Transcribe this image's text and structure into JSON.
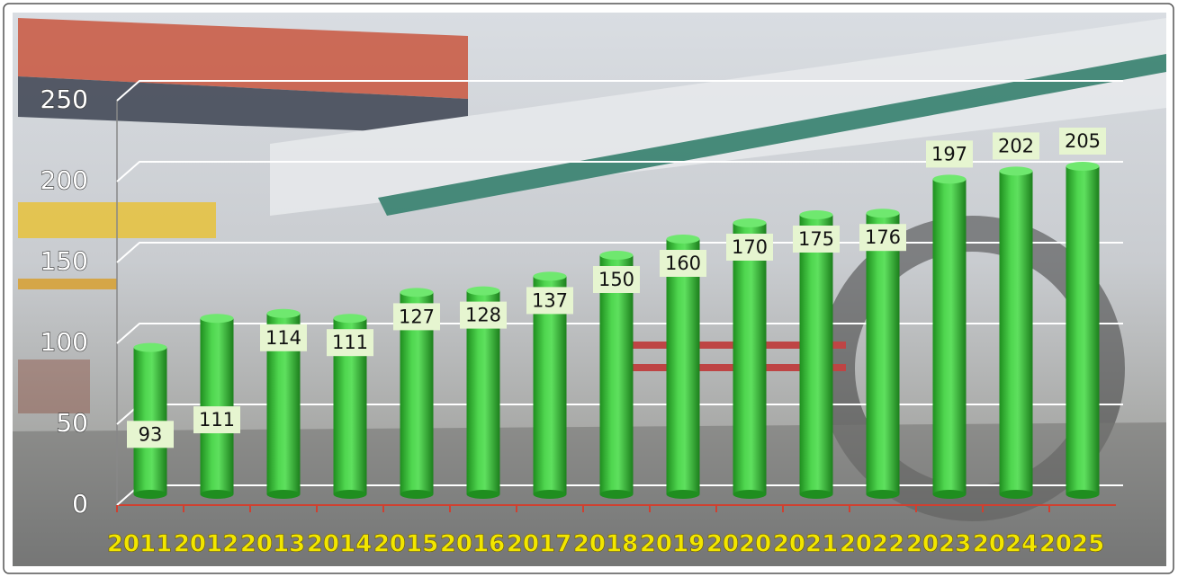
{
  "chart_data": {
    "type": "bar",
    "categories": [
      "2011",
      "2012",
      "2013",
      "2014",
      "2015",
      "2016",
      "2017",
      "2018",
      "2019",
      "2020",
      "2021",
      "2022",
      "2023",
      "2024",
      "2025"
    ],
    "values": [
      93,
      111,
      114,
      111,
      127,
      128,
      137,
      150,
      160,
      170,
      175,
      176,
      197,
      202,
      205
    ],
    "color": "#3cc23c",
    "ylim": [
      0,
      250
    ],
    "yticks": [
      0,
      50,
      100,
      150,
      200,
      250
    ],
    "grid": true
  }
}
